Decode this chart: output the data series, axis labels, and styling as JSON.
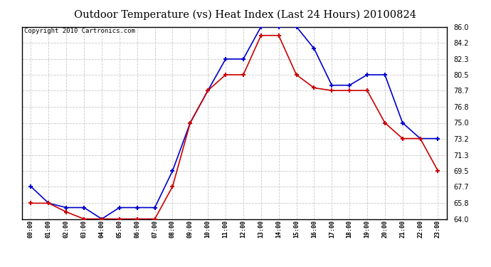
{
  "title": "Outdoor Temperature (vs) Heat Index (Last 24 Hours) 20100824",
  "copyright": "Copyright 2010 Cartronics.com",
  "hours": [
    "00:00",
    "01:00",
    "02:00",
    "03:00",
    "04:00",
    "05:00",
    "06:00",
    "07:00",
    "08:00",
    "09:00",
    "10:00",
    "11:00",
    "12:00",
    "13:00",
    "14:00",
    "15:00",
    "16:00",
    "17:00",
    "18:00",
    "19:00",
    "20:00",
    "21:00",
    "22:00",
    "23:00"
  ],
  "temp_blue": [
    67.7,
    65.8,
    65.3,
    65.3,
    64.0,
    65.3,
    65.3,
    65.3,
    69.5,
    75.0,
    78.7,
    82.3,
    82.3,
    86.0,
    86.0,
    86.0,
    83.5,
    79.3,
    79.3,
    80.5,
    80.5,
    75.0,
    73.2,
    73.2
  ],
  "heat_red": [
    65.8,
    65.8,
    64.8,
    64.0,
    64.0,
    64.0,
    64.0,
    64.0,
    67.7,
    75.0,
    78.7,
    80.5,
    80.5,
    85.0,
    85.0,
    80.5,
    79.0,
    78.7,
    78.7,
    78.7,
    75.0,
    73.2,
    73.2,
    69.5
  ],
  "ylim_min": 64.0,
  "ylim_max": 86.0,
  "yticks": [
    64.0,
    65.8,
    67.7,
    69.5,
    71.3,
    73.2,
    75.0,
    76.8,
    78.7,
    80.5,
    82.3,
    84.2,
    86.0
  ],
  "blue_color": "#0000cc",
  "red_color": "#cc0000",
  "background_color": "#ffffff",
  "grid_color": "#bbbbbb",
  "title_fontsize": 10.5,
  "copyright_fontsize": 6.5
}
